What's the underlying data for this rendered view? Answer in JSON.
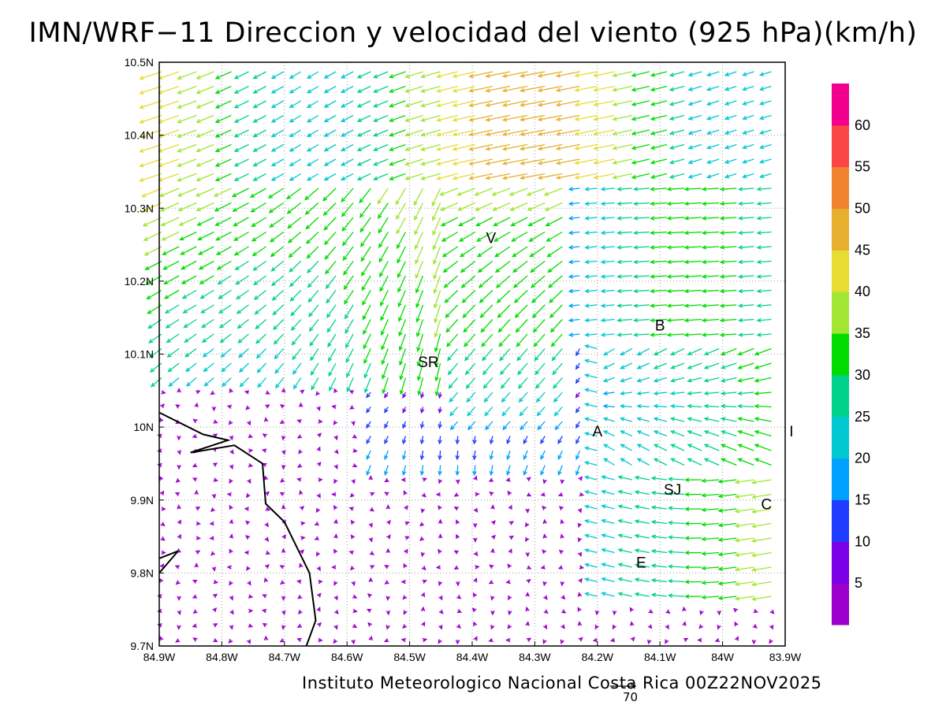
{
  "title": "IMN/WRF−11 Direccion y velocidad del viento (925 hPa)(km/h)",
  "credit": "Instituto Meteorologico Nacional Costa Rica 00Z22NOV2025",
  "reference_vector": {
    "value": "70",
    "speed_kmh": 70
  },
  "map": {
    "lon_range": [
      -84.9,
      -83.9
    ],
    "lat_range": [
      9.7,
      10.5
    ],
    "x_ticks": [
      "84.9W",
      "84.8W",
      "84.7W",
      "84.6W",
      "84.5W",
      "84.4W",
      "84.3W",
      "84.2W",
      "84.1W",
      "84W",
      "83.9W"
    ],
    "y_ticks": [
      "9.7N",
      "9.8N",
      "9.9N",
      "10N",
      "10.1N",
      "10.2N",
      "10.3N",
      "10.4N",
      "10.5N"
    ],
    "grid": "dotted",
    "places": [
      {
        "label": "V",
        "lon": -84.37,
        "lat": 10.26
      },
      {
        "label": "SR",
        "lon": -84.47,
        "lat": 10.09
      },
      {
        "label": "B",
        "lon": -84.1,
        "lat": 10.14
      },
      {
        "label": "A",
        "lon": -84.2,
        "lat": 9.995
      },
      {
        "label": "SJ",
        "lon": -84.08,
        "lat": 9.915
      },
      {
        "label": "C",
        "lon": -83.93,
        "lat": 9.895
      },
      {
        "label": "E",
        "lon": -84.13,
        "lat": 9.815
      },
      {
        "label": "I",
        "lon": -83.89,
        "lat": 9.995
      }
    ],
    "coastline": [
      [
        -84.9,
        10.02
      ],
      [
        -84.83,
        9.99
      ],
      [
        -84.79,
        9.982
      ],
      [
        -84.85,
        9.965
      ],
      [
        -84.78,
        9.975
      ],
      [
        -84.735,
        9.95
      ],
      [
        -84.73,
        9.895
      ],
      [
        -84.7,
        9.87
      ],
      [
        -84.66,
        9.8
      ],
      [
        -84.65,
        9.735
      ],
      [
        -84.665,
        9.7
      ]
    ],
    "coastline2": [
      [
        -84.9,
        9.82
      ],
      [
        -84.87,
        9.83
      ],
      [
        -84.9,
        9.8
      ]
    ]
  },
  "colorbar": {
    "labels": [
      "5",
      "10",
      "15",
      "20",
      "25",
      "30",
      "35",
      "40",
      "45",
      "50",
      "55",
      "60"
    ],
    "colors": [
      "#9b00cc",
      "#7a00e6",
      "#1f3cff",
      "#00a0ff",
      "#00c8d0",
      "#00d28c",
      "#00dc00",
      "#a0e632",
      "#e6dc32",
      "#e6af2d",
      "#f0822d",
      "#fa4646",
      "#f0008c"
    ]
  },
  "wind_field": {
    "description_zones": "easterly trades in north and east, convergent southward flow near SR, weak variable winds in southwest"
  }
}
